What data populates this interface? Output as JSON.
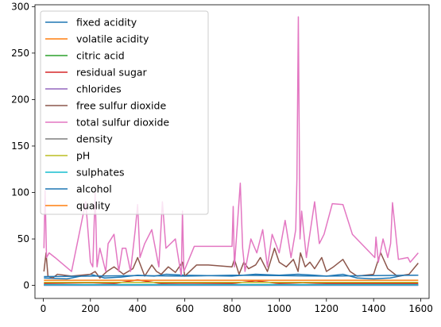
{
  "chart_data": {
    "type": "line",
    "title": "",
    "xlabel": "",
    "ylabel": "",
    "xlim": [
      -35,
      1635
    ],
    "ylim": [
      -14,
      302
    ],
    "xticks": [
      0,
      200,
      400,
      600,
      800,
      1000,
      1200,
      1400,
      1600
    ],
    "yticks": [
      0,
      50,
      100,
      150,
      200,
      250,
      300
    ],
    "legend_position": "top-left",
    "grid": false,
    "series": [
      {
        "name": "fixed acidity",
        "color": "#1f77b4",
        "x": [
          3,
          100,
          200,
          260,
          330,
          400,
          470,
          520,
          600,
          800,
          900,
          1000,
          1080,
          1150,
          1200,
          1270,
          1330,
          1400,
          1470,
          1530,
          1589
        ],
        "y": [
          8,
          7,
          12,
          8,
          9,
          11,
          10,
          12,
          11,
          10,
          12,
          11,
          12,
          11,
          10,
          12,
          8,
          7,
          8,
          11,
          11
        ]
      },
      {
        "name": "volatile acidity",
        "color": "#ff7f0e",
        "x": [
          3,
          1589
        ],
        "y": [
          0.5,
          0.5
        ]
      },
      {
        "name": "citric acid",
        "color": "#2ca02c",
        "x": [
          3,
          1589
        ],
        "y": [
          0.3,
          0.3
        ]
      },
      {
        "name": "residual sugar",
        "color": "#d62728",
        "x": [
          3,
          100,
          200,
          300,
          400,
          500,
          600,
          800,
          900,
          1000,
          1100,
          1200,
          1400,
          1589
        ],
        "y": [
          2,
          2.5,
          3,
          2,
          6,
          2,
          2.5,
          2,
          5,
          2,
          3,
          2,
          2,
          2
        ]
      },
      {
        "name": "chlorides",
        "color": "#9467bd",
        "x": [
          3,
          1589
        ],
        "y": [
          0.08,
          0.08
        ]
      },
      {
        "name": "free sulfur dioxide",
        "color": "#8c564b",
        "x": [
          3,
          12,
          20,
          40,
          60,
          120,
          200,
          220,
          240,
          270,
          300,
          340,
          380,
          400,
          430,
          460,
          480,
          500,
          530,
          560,
          590,
          600,
          650,
          700,
          800,
          810,
          830,
          850,
          870,
          900,
          920,
          950,
          980,
          1000,
          1030,
          1060,
          1080,
          1090,
          1110,
          1130,
          1150,
          1180,
          1200,
          1230,
          1270,
          1300,
          1330,
          1400,
          1410,
          1430,
          1460,
          1480,
          1500,
          1550,
          1589
        ],
        "y": [
          15,
          35,
          10,
          8,
          12,
          10,
          12,
          15,
          8,
          15,
          20,
          12,
          18,
          30,
          10,
          22,
          15,
          12,
          20,
          14,
          25,
          10,
          22,
          22,
          20,
          28,
          12,
          25,
          18,
          22,
          30,
          15,
          40,
          25,
          20,
          28,
          15,
          35,
          20,
          25,
          18,
          30,
          15,
          20,
          28,
          15,
          10,
          12,
          20,
          35,
          18,
          14,
          10,
          12,
          24
        ]
      },
      {
        "name": "total sulfur dioxide",
        "color": "#e377c2",
        "x": [
          3,
          8,
          14,
          25,
          50,
          120,
          180,
          200,
          210,
          220,
          228,
          240,
          250,
          265,
          275,
          300,
          320,
          335,
          350,
          370,
          390,
          400,
          410,
          430,
          460,
          490,
          505,
          520,
          560,
          585,
          590,
          596,
          640,
          800,
          805,
          810,
          835,
          845,
          855,
          880,
          905,
          930,
          950,
          970,
          1000,
          1025,
          1050,
          1070,
          1075,
          1081,
          1088,
          1095,
          1115,
          1150,
          1170,
          1190,
          1225,
          1270,
          1310,
          1405,
          1410,
          1420,
          1440,
          1460,
          1472,
          1480,
          1505,
          1545,
          1555,
          1589
        ],
        "y": [
          40,
          102,
          30,
          35,
          30,
          15,
          90,
          25,
          20,
          100,
          20,
          40,
          30,
          15,
          45,
          55,
          15,
          40,
          40,
          15,
          60,
          87,
          30,
          45,
          60,
          20,
          90,
          40,
          50,
          10,
          80,
          15,
          42,
          42,
          85,
          20,
          110,
          40,
          15,
          50,
          35,
          60,
          20,
          55,
          35,
          70,
          30,
          60,
          115,
          289,
          50,
          80,
          30,
          90,
          45,
          55,
          88,
          87,
          55,
          30,
          52,
          25,
          50,
          30,
          45,
          89,
          28,
          30,
          25,
          35
        ]
      },
      {
        "name": "density",
        "color": "#7f7f7f",
        "x": [
          3,
          1589
        ],
        "y": [
          1,
          1
        ]
      },
      {
        "name": "pH",
        "color": "#bcbd22",
        "x": [
          3,
          1589
        ],
        "y": [
          3.3,
          3.3
        ]
      },
      {
        "name": "sulphates",
        "color": "#17becf",
        "x": [
          3,
          1589
        ],
        "y": [
          0.65,
          0.65
        ]
      },
      {
        "name": "alcohol",
        "color": "#1f77b4",
        "x": [
          3,
          200,
          400,
          600,
          800,
          1000,
          1200,
          1400,
          1589
        ],
        "y": [
          9.5,
          10,
          10.5,
          10,
          11,
          10.5,
          10,
          10.5,
          11
        ]
      },
      {
        "name": "quality",
        "color": "#ff7f0e",
        "x": [
          3,
          1589
        ],
        "y": [
          5.5,
          5.5
        ]
      }
    ]
  }
}
